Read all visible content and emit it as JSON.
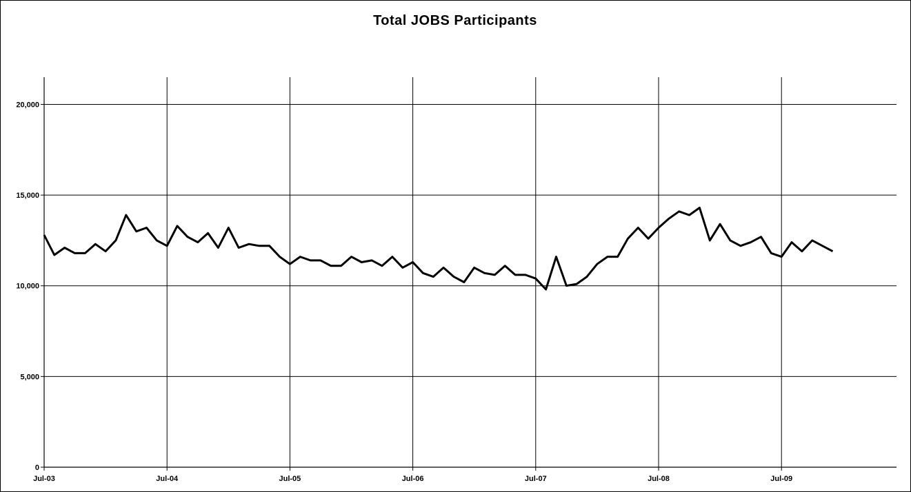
{
  "chart_data": {
    "type": "line",
    "title": "Total  JOBS  Participants",
    "xlabel": "",
    "ylabel": "",
    "ylim": [
      0,
      21500
    ],
    "yticks": [
      0,
      5000,
      10000,
      15000,
      20000
    ],
    "ytick_labels": [
      "0",
      "5,000",
      "10,000",
      "15,000",
      "20,000"
    ],
    "xtick_labels": [
      "Jul-03",
      "Jul-04",
      "Jul-05",
      "Jul-06",
      "Jul-07",
      "Jul-08",
      "Jul-09"
    ],
    "grid": true,
    "line_color": "#000000",
    "series": [
      {
        "values": [
          12800,
          11700,
          12100,
          11800,
          11800,
          12300,
          11900,
          12500,
          13900,
          13000,
          13200,
          12500,
          12200,
          13300,
          12700,
          12400,
          12900,
          12100,
          13200,
          12100,
          12300,
          12200,
          12200,
          11600,
          11200,
          11600,
          11400,
          11400,
          11100,
          11100,
          11600,
          11300,
          11400,
          11100,
          11600,
          11000,
          11300,
          10700,
          10500,
          11000,
          10500,
          10200,
          11000,
          10700,
          10600,
          11100,
          10600,
          10600,
          10400,
          9800,
          11600,
          10000,
          10100,
          10500,
          11200,
          11600,
          11600,
          12600,
          13200,
          12600,
          13200,
          13700,
          14100,
          13900,
          14300,
          12500,
          13400,
          12500,
          12200,
          12400,
          12700,
          11800,
          11600,
          12400,
          11900,
          12500,
          12200,
          11900
        ]
      }
    ]
  }
}
